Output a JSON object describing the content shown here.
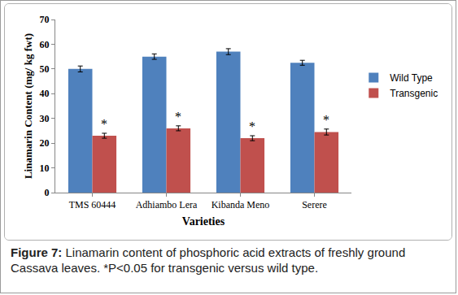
{
  "chart_data": {
    "type": "bar",
    "categories": [
      "TMS 60444",
      "Adhiambo Lera",
      "Kibanda Meno",
      "Serere"
    ],
    "series": [
      {
        "name": "Wild Type",
        "color": "#4F81BD",
        "values": [
          50,
          55,
          57,
          52.5
        ],
        "errors": [
          1.2,
          1.1,
          1.2,
          1.0
        ]
      },
      {
        "name": "Transgenic",
        "color": "#C0504D",
        "values": [
          23,
          26,
          22,
          24.5
        ],
        "errors": [
          1.0,
          1.0,
          1.0,
          1.2
        ]
      }
    ],
    "x_label": "Varieties",
    "y_label": "Linamarin Content (mg/ kg fwt)",
    "ylim": [
      0,
      70
    ],
    "yticks": [
      0,
      10,
      20,
      30,
      40,
      50,
      60,
      70
    ],
    "grid": false,
    "legend": "right",
    "annotations": [
      {
        "category": "TMS 60444",
        "series": "Transgenic",
        "text": "*"
      },
      {
        "category": "Adhiambo Lera",
        "series": "Transgenic",
        "text": "*"
      },
      {
        "category": "Kibanda Meno",
        "series": "Transgenic",
        "text": "*"
      },
      {
        "category": "Serere",
        "series": "Transgenic",
        "text": "*"
      }
    ]
  },
  "caption": {
    "label": "Figure 7:",
    "text": "Linamarin content of phosphoric acid extracts of freshly ground Cassava leaves. *P<0.05 for transgenic versus wild type."
  }
}
